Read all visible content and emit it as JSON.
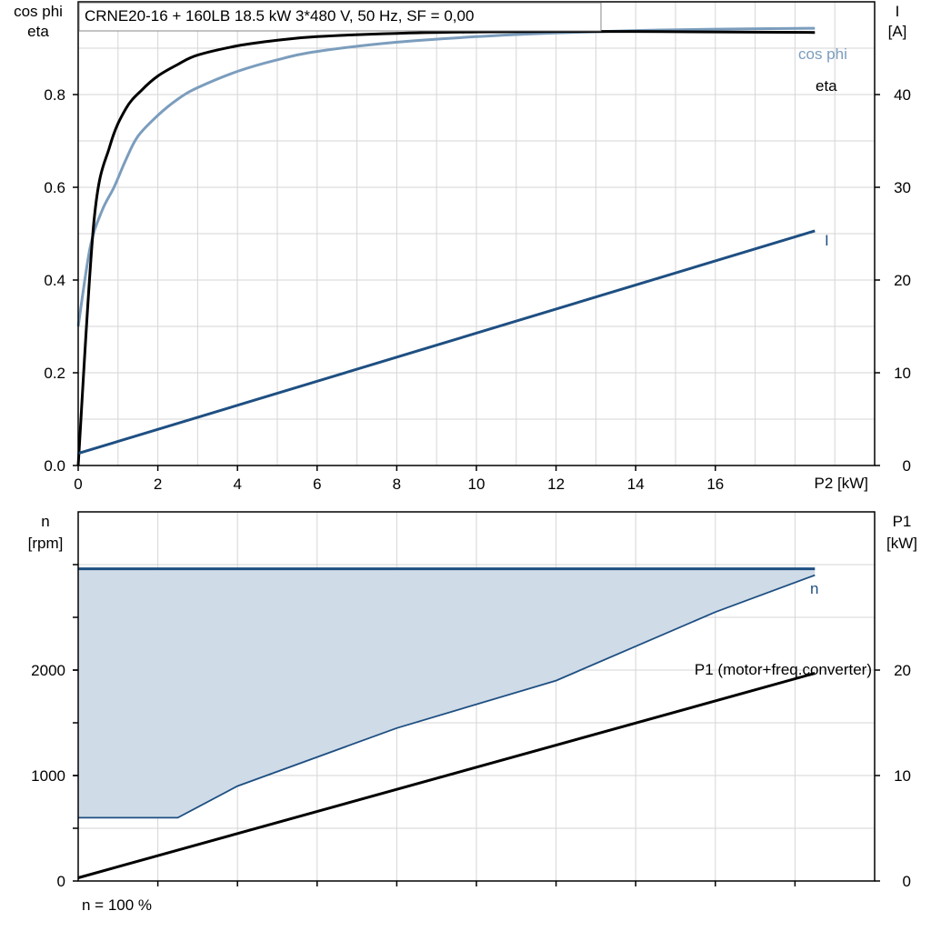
{
  "chart_data": [
    {
      "type": "line",
      "title": "CRNE20-16 + 160LB   18.5 kW   3*480 V, 50 Hz, SF = 0,00",
      "xlabel": "P2 [kW]",
      "ylabel_left": [
        "cos phi",
        "eta"
      ],
      "ylabel_right": [
        "I",
        "[A]"
      ],
      "xlim": [
        0,
        20
      ],
      "ylim_left": [
        0,
        1.0
      ],
      "ylim_right": [
        0,
        50
      ],
      "x_ticks": [
        "0",
        "2",
        "4",
        "6",
        "8",
        "10",
        "12",
        "14",
        "16"
      ],
      "y_ticks_left": [
        "0.0",
        "0.2",
        "0.4",
        "0.6",
        "0.8"
      ],
      "y_ticks_right": [
        "0",
        "10",
        "20",
        "30",
        "40"
      ],
      "grid": true,
      "series": [
        {
          "name": "eta",
          "axis": "left",
          "color": "#000000",
          "x": [
            0,
            0.4,
            0.8,
            1.2,
            1.6,
            2.0,
            2.5,
            3,
            4,
            5,
            6,
            8,
            10,
            12,
            14,
            16,
            18.5
          ],
          "y": [
            0.0,
            0.53,
            0.69,
            0.77,
            0.81,
            0.84,
            0.865,
            0.885,
            0.905,
            0.917,
            0.925,
            0.932,
            0.935,
            0.936,
            0.936,
            0.935,
            0.934
          ]
        },
        {
          "name": "cos phi",
          "axis": "left",
          "color": "#7b9dbd",
          "x": [
            0,
            0.3,
            0.6,
            0.9,
            1.2,
            1.5,
            2.0,
            2.5,
            3,
            4,
            5,
            6,
            8,
            10,
            12,
            14,
            16,
            18.5
          ],
          "y": [
            0.3,
            0.47,
            0.55,
            0.6,
            0.66,
            0.71,
            0.755,
            0.79,
            0.815,
            0.85,
            0.875,
            0.893,
            0.913,
            0.925,
            0.933,
            0.938,
            0.941,
            0.943
          ]
        },
        {
          "name": "I",
          "axis": "right",
          "color": "#1e4f82",
          "x": [
            0,
            18.5
          ],
          "y": [
            1.3,
            25.3
          ]
        }
      ]
    },
    {
      "type": "area",
      "xlim": [
        0,
        20
      ],
      "ylabel_left": [
        "n",
        "[rpm]"
      ],
      "ylabel_right": [
        "P1",
        "[kW]"
      ],
      "ylim_left": [
        0,
        3500
      ],
      "ylim_right": [
        0,
        35
      ],
      "y_ticks_left": [
        "0",
        "1000",
        "2000"
      ],
      "y_ticks_right": [
        "0",
        "10",
        "20"
      ],
      "grid": true,
      "footnote": "n = 100 %",
      "band": {
        "upper": {
          "x": [
            0,
            18.5
          ],
          "y": [
            2960,
            2960
          ]
        },
        "lower": {
          "x": [
            0,
            2.5,
            4,
            8,
            12,
            16,
            18.5
          ],
          "y": [
            600,
            600,
            900,
            1450,
            1900,
            2550,
            2900
          ]
        },
        "fill": "#cfdbe7",
        "edge": "#1e4f82"
      },
      "series": [
        {
          "name": "n",
          "axis": "left",
          "color": "#1e4f82",
          "x": [
            0,
            18.5
          ],
          "y": [
            2960,
            2960
          ]
        },
        {
          "name": "P1 (motor+freq.converter)",
          "axis": "right",
          "color": "#000000",
          "x": [
            0,
            18.5
          ],
          "y": [
            0.3,
            19.7
          ]
        }
      ]
    }
  ]
}
